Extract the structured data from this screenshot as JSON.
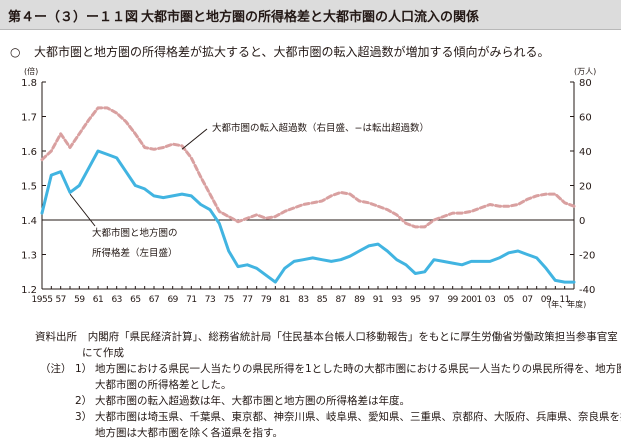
{
  "figure": {
    "number": "第４ー（３）ー１１図",
    "title": "大都市圏と地方圏の所得格差と大都市圏の人口流入の関係",
    "summary_mark": "○",
    "summary": "大都市圏と地方圏の所得格差が拡大すると、大都市圏の転入超過数が増加する傾向がみられる。"
  },
  "colors": {
    "ratio_line": "#41b4e1",
    "migration_line": "#d9a0a0",
    "header_bg": "#dcdcdc",
    "axis": "#231815"
  },
  "chart_data": {
    "type": "line",
    "left_unit": "(倍)",
    "right_unit": "(万人)",
    "x_unit": "(年、年度)",
    "x": [
      1955,
      1956,
      1957,
      1958,
      1959,
      1960,
      1961,
      1962,
      1963,
      1964,
      1965,
      1966,
      1967,
      1968,
      1969,
      1970,
      1971,
      1972,
      1973,
      1974,
      1975,
      1976,
      1977,
      1978,
      1979,
      1980,
      1981,
      1982,
      1983,
      1984,
      1985,
      1986,
      1987,
      1988,
      1989,
      1990,
      1991,
      1992,
      1993,
      1994,
      1995,
      1996,
      1997,
      1998,
      1999,
      2000,
      2001,
      2002,
      2003,
      2004,
      2005,
      2006,
      2007,
      2008,
      2009,
      2010,
      2011,
      2012
    ],
    "x_ticks": [
      "1955",
      "57",
      "59",
      "61",
      "63",
      "65",
      "67",
      "69",
      "71",
      "73",
      "75",
      "77",
      "79",
      "81",
      "83",
      "85",
      "87",
      "89",
      "91",
      "93",
      "95",
      "97",
      "99",
      "2001",
      "03",
      "05",
      "07",
      "09",
      "11"
    ],
    "y_left": {
      "lim": [
        1.2,
        1.8
      ],
      "ticks": [
        "1.2",
        "1.3",
        "1.4",
        "1.5",
        "1.6",
        "1.7",
        "1.8"
      ]
    },
    "y_right": {
      "lim": [
        -40,
        80
      ],
      "ticks": [
        "-40",
        "-20",
        "0",
        "20",
        "40",
        "60",
        "80"
      ]
    },
    "series": [
      {
        "name": "大都市圏の転入超過数（右目盛、−は転出超過数）",
        "axis": "right",
        "style": "dashed",
        "values": [
          35,
          40,
          50,
          42,
          50,
          58,
          65,
          65,
          62,
          57,
          50,
          42,
          41,
          42,
          44,
          43,
          36,
          25,
          15,
          5,
          2,
          -1,
          1,
          3,
          1,
          2,
          5,
          7,
          9,
          10,
          11,
          14,
          16,
          15,
          11,
          10,
          8,
          6,
          3,
          -2,
          -4,
          -4,
          0,
          2,
          4,
          4,
          5,
          7,
          9,
          8,
          8,
          9,
          12,
          14,
          15,
          15,
          10,
          8
        ]
      },
      {
        "name": "大都市圏と地方圏の所得格差（左目盛）",
        "axis": "left",
        "style": "solid",
        "values": [
          1.42,
          1.53,
          1.54,
          1.48,
          1.5,
          1.55,
          1.6,
          1.59,
          1.58,
          1.54,
          1.5,
          1.49,
          1.47,
          1.465,
          1.47,
          1.475,
          1.47,
          1.445,
          1.43,
          1.39,
          1.31,
          1.265,
          1.27,
          1.26,
          1.24,
          1.22,
          1.26,
          1.28,
          1.285,
          1.29,
          1.285,
          1.28,
          1.285,
          1.295,
          1.31,
          1.325,
          1.33,
          1.31,
          1.285,
          1.27,
          1.245,
          1.25,
          1.285,
          1.28,
          1.275,
          1.27,
          1.28,
          1.28,
          1.28,
          1.29,
          1.305,
          1.31,
          1.3,
          1.29,
          1.26,
          1.225,
          1.22,
          1.22
        ]
      }
    ],
    "annotations": {
      "migration": "大都市圏の転入超過数（右目盛、−は転出超過数）",
      "ratio_line1": "大都市圏と地方圏の",
      "ratio_line2": "所得格差（左目盛）"
    }
  },
  "source": {
    "label": "資料出所",
    "text": "内閣府「県民経済計算」、総務省統計局「住民基本台帳人口移動報告」をもとに厚生労働省労働政策担当参事官室",
    "text2": "にて作成"
  },
  "notes": {
    "label": "（注）",
    "items": [
      {
        "no": "1）",
        "line1": "地方圏における県民一人当たりの県民所得を1とした時の大都市圏における県民一人当たりの県民所得を、地方圏と",
        "line2": "大都市圏の所得格差とした。"
      },
      {
        "no": "2）",
        "line1": "大都市圏の転入超過数は年、大都市圏と地方圏の所得格差は年度。",
        "line2": ""
      },
      {
        "no": "3）",
        "line1": "大都市圏は埼玉県、千葉県、東京都、神奈川県、岐阜県、愛知県、三重県、京都府、大阪府、兵庫県、奈良県を指し、",
        "line2": "地方圏は大都市圏を除く各道県を指す。"
      }
    ]
  }
}
